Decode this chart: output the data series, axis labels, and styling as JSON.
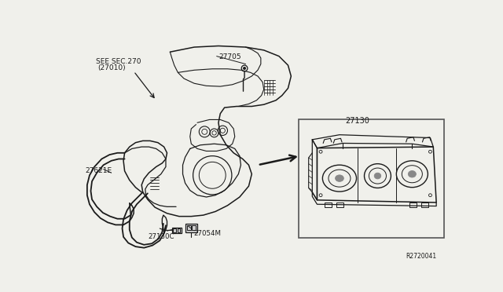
{
  "bg_color": "#f5f5f0",
  "fig_width": 6.4,
  "fig_height": 3.72,
  "dpi": 100,
  "labels": {
    "see_sec": "SEE SEC.270",
    "see_sec2": "(27010)",
    "part_27705": "27705",
    "part_27621E": "27621E",
    "part_27130_main": "27130",
    "part_27130C": "27130C",
    "part_27054M": "27054M",
    "part_ref": "R2720041"
  },
  "lc": "#1a1a1a",
  "lw_main": 1.0,
  "lw_thin": 0.7
}
